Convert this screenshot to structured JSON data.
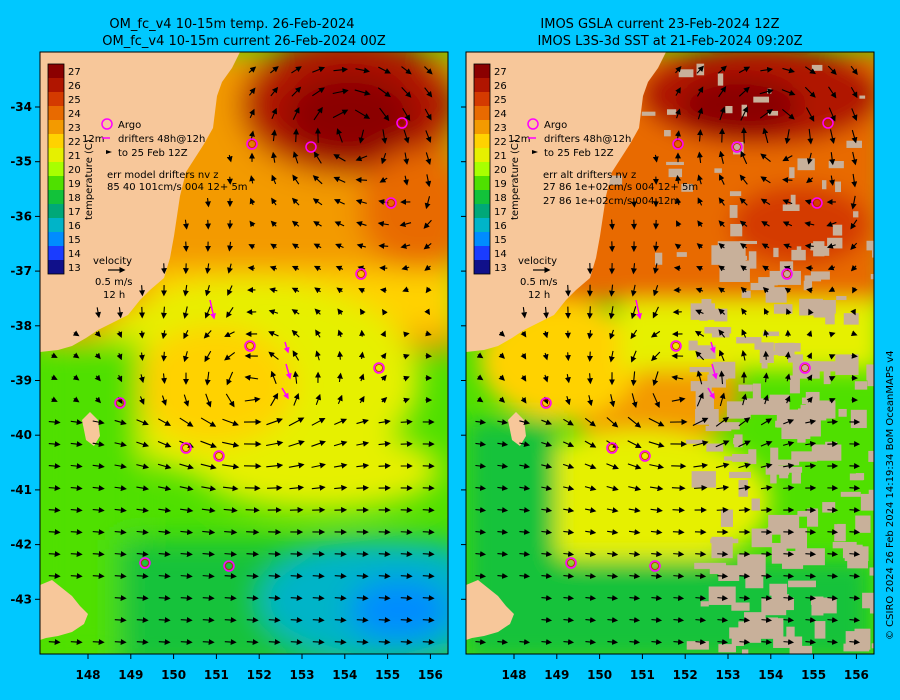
{
  "left_panel": {
    "title_line1": "OM_fc_v4  10-15m temp. 26-Feb-2024",
    "title_line2": "OM_fc_v4  10-15m current 26-Feb-2024 00Z",
    "legend_argo": "Argo",
    "legend_drifter_prefix": "12m",
    "legend_drifters": "drifters 48h@12h",
    "legend_to_date": "to 25 Feb 12Z",
    "err_line1": "err model drifters nv z",
    "err_line2": "85 40 101cm/s 004 12+ 5m",
    "velocity_label": "velocity",
    "velocity_speed": "0.5 m/s",
    "velocity_time": "12 h",
    "colorbar_label": "temperature (C)"
  },
  "right_panel": {
    "title_line1": "IMOS GSLA current 23-Feb-2024 12Z",
    "title_line2": "IMOS L3S-3d SST at 21-Feb-2024 09:20Z",
    "legend_argo": "Argo",
    "legend_drifter_prefix": "12m",
    "legend_drifters": "drifters 48h@12h",
    "legend_to_date": "to 25 Feb 12Z",
    "err_line1": "err alt drifters nv z",
    "err_line2": "27 86 1e+02cm/s 004 12+ 5m",
    "err_line3": "27 86 1e+02cm/s 004 12m",
    "velocity_label": "velocity",
    "velocity_speed": "0.5 m/s",
    "velocity_time": "12 h",
    "colorbar_label": "temperature (C)"
  },
  "side_credit": "© CSIRO 2024  26 Feb 2024 14:19:34 BoM OceanMAPS v4",
  "axes": {
    "lon_ticks": [
      "148",
      "149",
      "150",
      "151",
      "152",
      "153",
      "154",
      "155",
      "156"
    ],
    "lat_ticks": [
      "-34",
      "-35",
      "-36",
      "-37",
      "-38",
      "-39",
      "-40",
      "-41",
      "-42",
      "-43"
    ]
  },
  "colorbar": {
    "ticks": [
      "27",
      "26",
      "25",
      "24",
      "23",
      "22",
      "21",
      "20",
      "19",
      "18",
      "17",
      "16",
      "15",
      "14",
      "13"
    ],
    "colors": [
      "#8b0000",
      "#b01500",
      "#d43a00",
      "#e86a00",
      "#f39a00",
      "#ffd200",
      "#e6f000",
      "#a8ff00",
      "#4fe000",
      "#12c23a",
      "#00a878",
      "#00b4c8",
      "#008cff",
      "#1a3cff",
      "#10108a"
    ]
  },
  "colors": {
    "background": "#00c8ff",
    "land": "#f7c79a",
    "cloud": "#c8b09a",
    "argo": "#ff00ff",
    "argo_ring": "#c81400",
    "drifter": "#ff00ff"
  }
}
